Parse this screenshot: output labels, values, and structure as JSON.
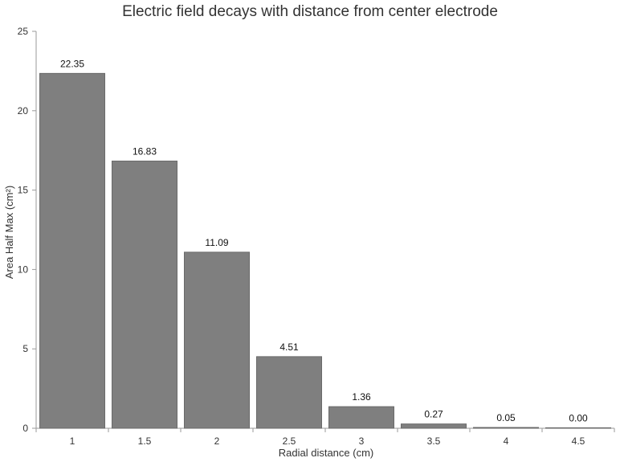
{
  "chart_data": {
    "type": "bar",
    "title": "Electric field decays with distance from center electrode",
    "xlabel": "Radial distance (cm)",
    "ylabel": "Area Half Max (cm²)",
    "categories": [
      "1",
      "1.5",
      "2",
      "2.5",
      "3",
      "3.5",
      "4",
      "4.5"
    ],
    "values": [
      22.35,
      16.83,
      11.09,
      4.51,
      1.36,
      0.27,
      0.05,
      0.0
    ],
    "data_labels": [
      "22.35",
      "16.83",
      "11.09",
      "4.51",
      "1.36",
      "0.27",
      "0.05",
      "0.00"
    ],
    "ylim": [
      0,
      25
    ],
    "yticks": [
      0,
      5,
      10,
      15,
      20,
      25
    ],
    "grid": false,
    "legend": "none",
    "bar_color": "#7f7f7f"
  }
}
